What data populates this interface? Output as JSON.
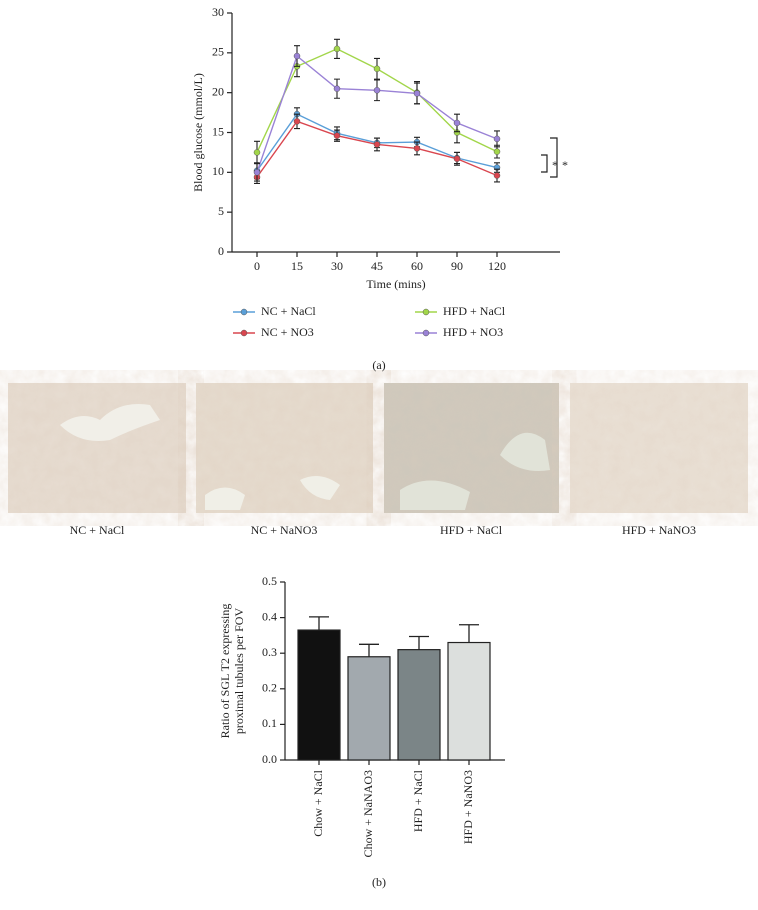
{
  "chart_data": [
    {
      "type": "line",
      "xlabel": "Time (mins)",
      "ylabel": "Blood glucose (mmol/L)",
      "categories": [
        "0",
        "15",
        "30",
        "45",
        "60",
        "90",
        "120"
      ],
      "ylim": [
        0,
        30
      ],
      "yticks": [
        0,
        5,
        10,
        15,
        20,
        25,
        30
      ],
      "series": [
        {
          "name": "NC + NaCl",
          "color": "#5a9fd8",
          "values": [
            10.2,
            17.3,
            14.9,
            13.7,
            13.8,
            11.8,
            10.6
          ],
          "errors": [
            1.0,
            0.8,
            0.8,
            0.6,
            0.6,
            0.7,
            0.6
          ]
        },
        {
          "name": "NC + NO3",
          "color": "#d9464f",
          "values": [
            9.4,
            16.4,
            14.6,
            13.5,
            13.0,
            11.7,
            9.6
          ],
          "errors": [
            0.8,
            0.9,
            0.7,
            0.8,
            0.8,
            0.8,
            0.8
          ]
        },
        {
          "name": "HFD + NaCl",
          "color": "#a2d64a",
          "values": [
            12.5,
            23.3,
            25.5,
            23.0,
            20.0,
            15.0,
            12.6
          ],
          "errors": [
            1.4,
            1.3,
            1.2,
            1.3,
            1.4,
            1.3,
            0.8
          ]
        },
        {
          "name": "HFD + NO3",
          "color": "#9a82d6",
          "values": [
            10.0,
            24.6,
            20.5,
            20.3,
            19.9,
            16.2,
            14.2
          ],
          "errors": [
            1.1,
            1.3,
            1.2,
            1.3,
            1.3,
            1.1,
            1.0
          ]
        }
      ],
      "annotations": [
        "*",
        "*"
      ]
    },
    {
      "type": "bar",
      "ylabel": [
        "Ratio of SGL T2 expressing",
        "proximal tubules per FOV"
      ],
      "categories": [
        "Chow + NaCl",
        "Chow + NaNAO3",
        "HFD + NaCl",
        "HFD + NaNO3"
      ],
      "values": [
        0.365,
        0.29,
        0.31,
        0.33
      ],
      "errors": [
        0.037,
        0.035,
        0.037,
        0.05
      ],
      "colors": [
        "#111111",
        "#a2a9ae",
        "#7b8587",
        "#dcdfdd"
      ],
      "ylim": [
        0,
        0.5
      ],
      "yticks": [
        {
          "value": 0,
          "label": "0.0"
        },
        0.1,
        0.2,
        0.3,
        0.4,
        0.5
      ]
    }
  ],
  "micrographs": [
    "NC + NaCl",
    "NC + NaNO3",
    "HFD + NaCl",
    "HFD + NaNO3"
  ],
  "panel_labels": [
    "(a)",
    "(b)"
  ]
}
